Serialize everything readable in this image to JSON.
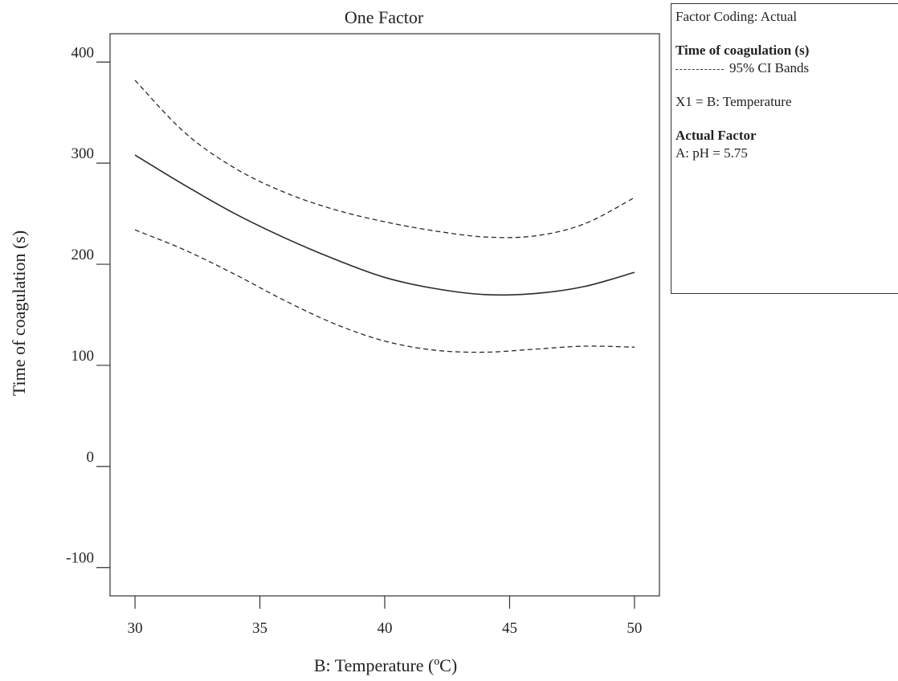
{
  "chart_data": {
    "type": "line",
    "title": "One Factor",
    "xlabel": "B: Temperature (ºC)",
    "ylabel": "Time of coagulation (s)",
    "xlim": [
      29,
      51
    ],
    "ylim": [
      -128,
      428
    ],
    "xticks": [
      30,
      35,
      40,
      45,
      50
    ],
    "yticks": [
      -100,
      0,
      100,
      200,
      300,
      400
    ],
    "grid": false,
    "series": [
      {
        "role": "prediction",
        "style": "solid",
        "x": [
          30,
          32,
          34,
          36,
          38,
          40,
          42,
          44,
          46,
          48,
          50
        ],
        "y": [
          308,
          278,
          250,
          226,
          205,
          187,
          176,
          170,
          171,
          178,
          192
        ]
      },
      {
        "role": "upper-ci",
        "style": "dashed",
        "x": [
          30,
          32,
          34,
          36,
          38,
          40,
          42,
          44,
          46,
          48,
          50
        ],
        "y": [
          382,
          330,
          295,
          271,
          254,
          242,
          233,
          227,
          228,
          240,
          266
        ]
      },
      {
        "role": "lower-ci",
        "style": "dashed",
        "x": [
          30,
          32,
          34,
          36,
          38,
          40,
          42,
          44,
          46,
          48,
          50
        ],
        "y": [
          234,
          214,
          190,
          164,
          141,
          124,
          115,
          113,
          116,
          119,
          118
        ]
      }
    ]
  },
  "legend": {
    "factor_coding": "Factor Coding: Actual",
    "response_title": "Time of coagulation (s)",
    "ci_label": "95% CI Bands",
    "x1_label": "X1 = B: Temperature",
    "actual_factor_title": "Actual Factor",
    "actual_factor_value": "A: pH = 5.75"
  }
}
